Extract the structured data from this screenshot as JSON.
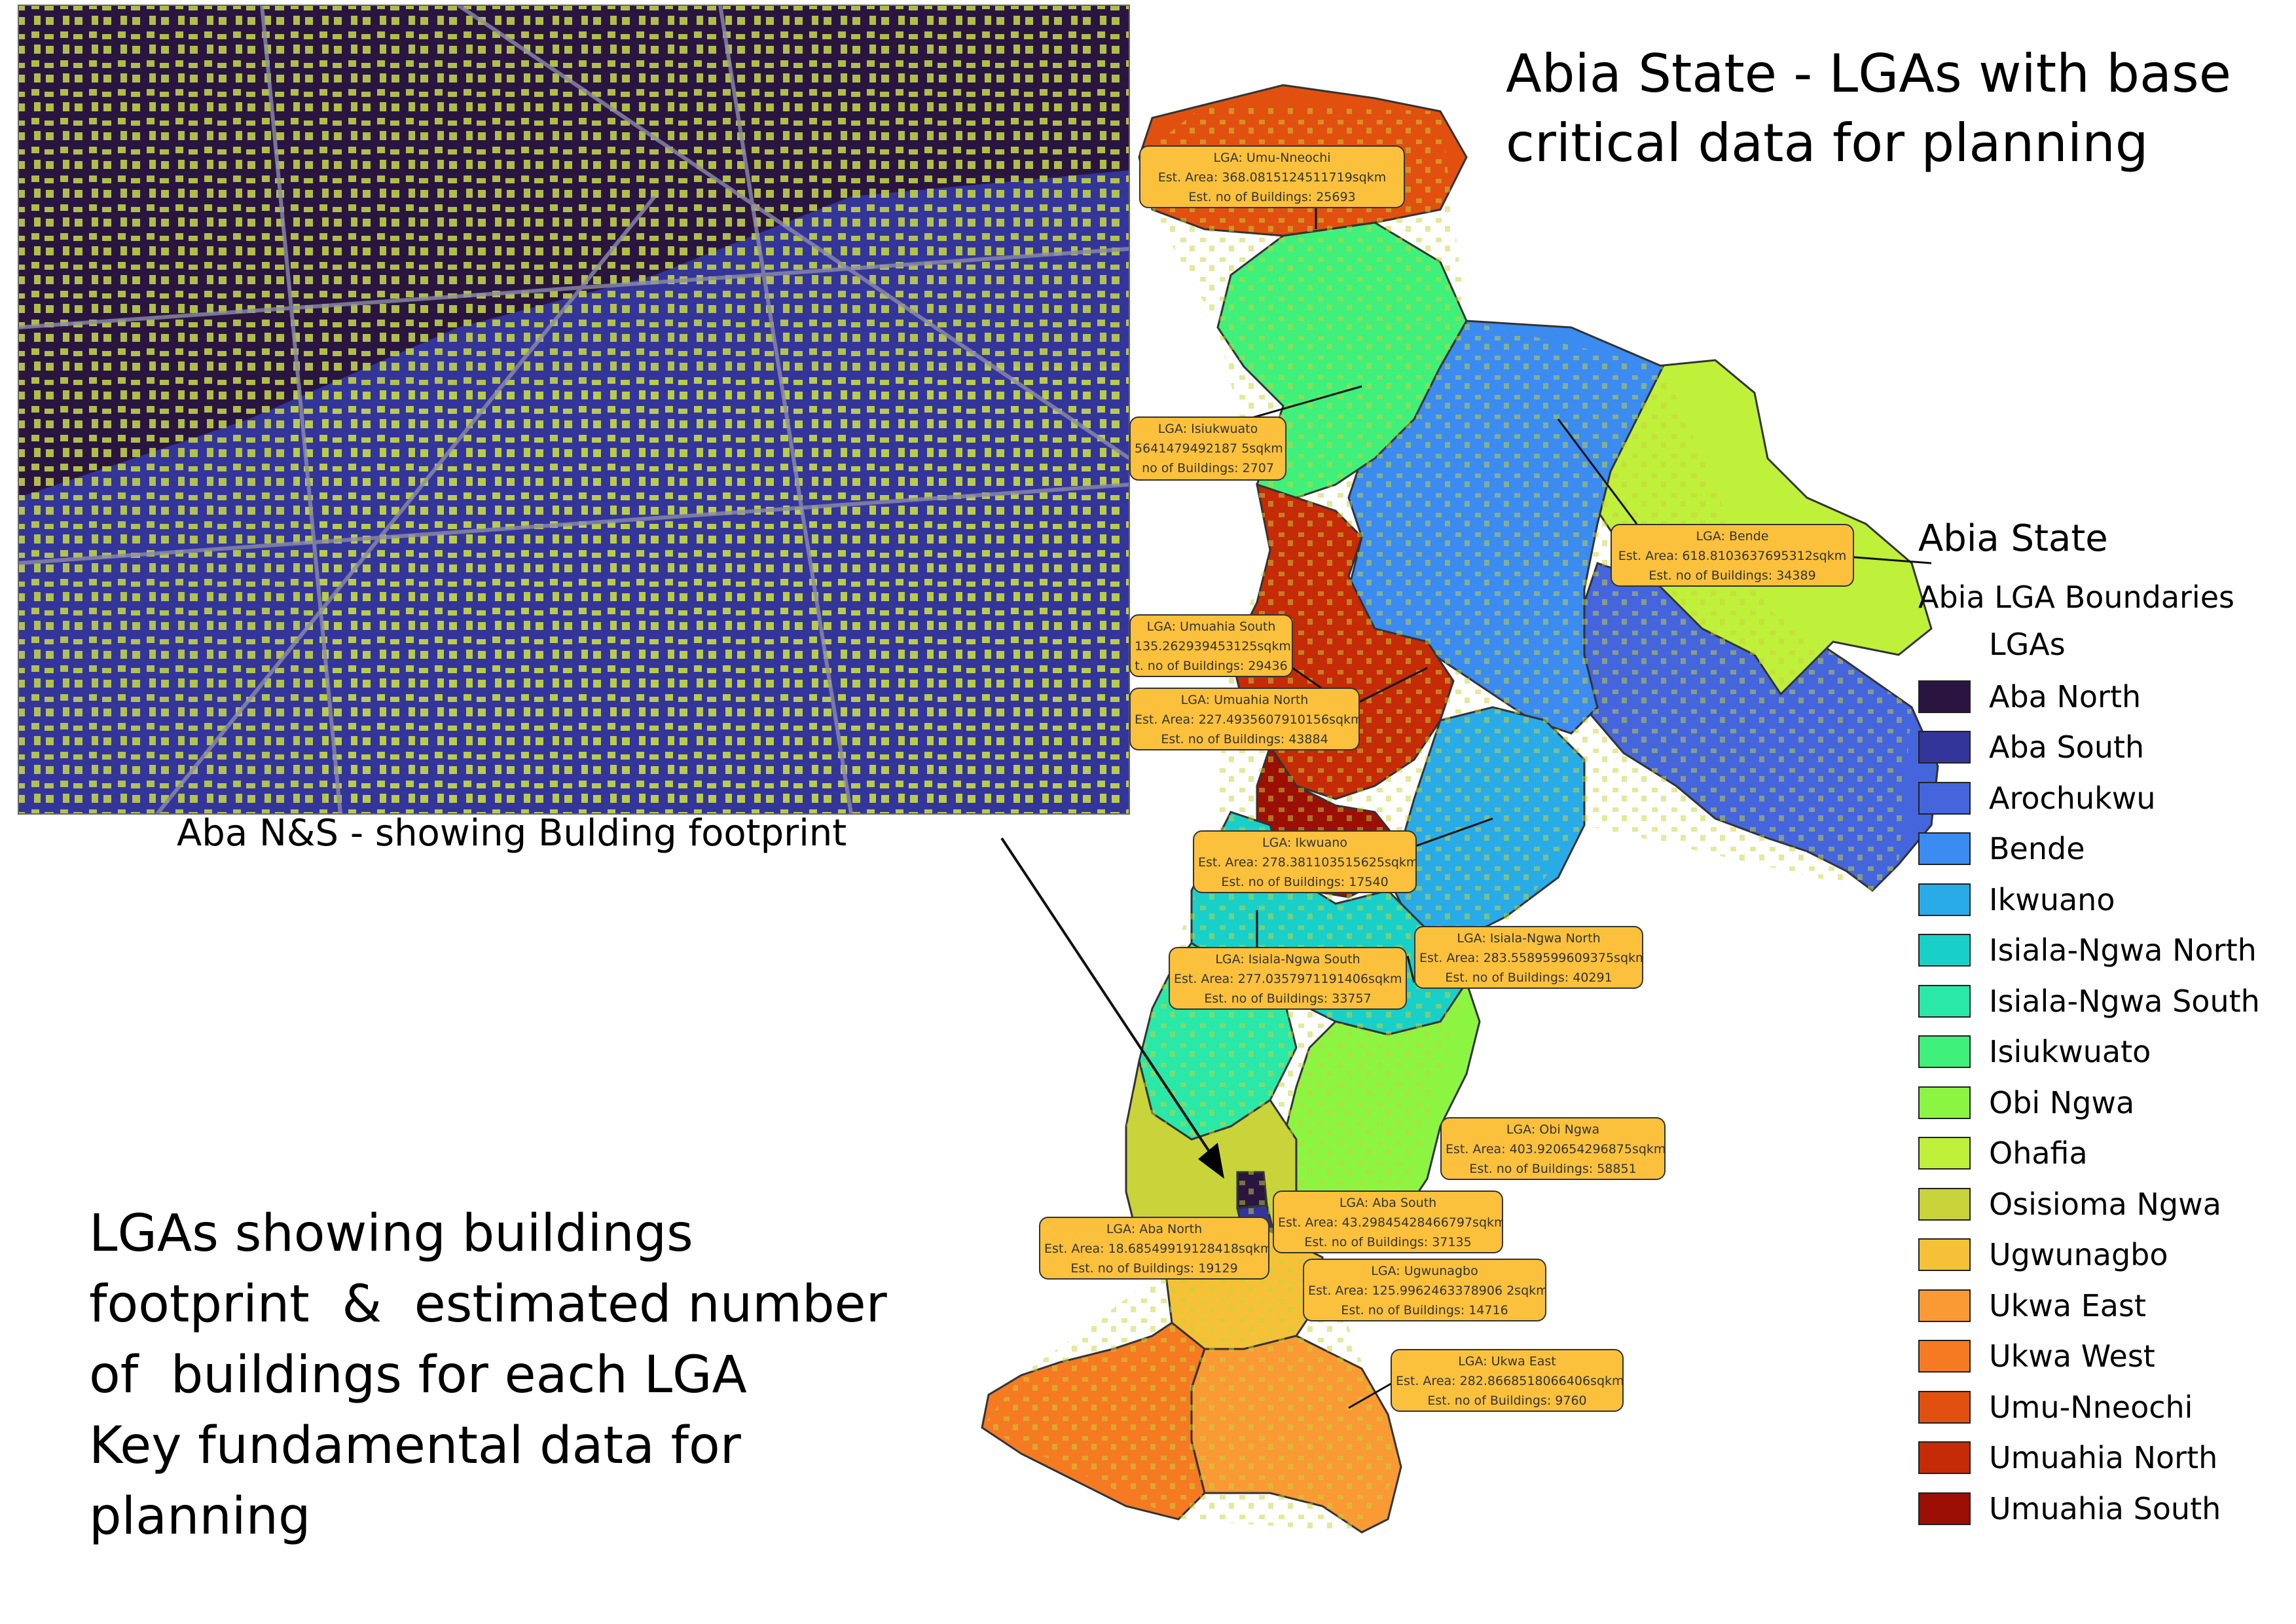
{
  "title_lines": [
    "Abia State - LGAs with base",
    "critical data for planning"
  ],
  "inset": {
    "caption": "Aba N&S - showing Bulding footprint"
  },
  "description_lines": [
    "LGAs showing buildings",
    "footprint  &  estimated number",
    "of  buildings for each LGA",
    "Key fundamental data for",
    "planning"
  ],
  "legend": {
    "title": "Abia State",
    "layer": "Abia LGA Boundaries",
    "field": "LGAs",
    "items": [
      {
        "label": "Aba North",
        "color": "#2a1540"
      },
      {
        "label": "Aba South",
        "color": "#34359a"
      },
      {
        "label": "Arochukwu",
        "color": "#4565dc"
      },
      {
        "label": "Bende",
        "color": "#3b8bf0"
      },
      {
        "label": "Ikwuano",
        "color": "#29abe8"
      },
      {
        "label": "Isiala-Ngwa North",
        "color": "#19d0c8"
      },
      {
        "label": "Isiala-Ngwa South",
        "color": "#29e8a8"
      },
      {
        "label": "Isiukwuato",
        "color": "#3ff07a"
      },
      {
        "label": "Obi Ngwa",
        "color": "#8cf542"
      },
      {
        "label": "Ohafia",
        "color": "#bff03a"
      },
      {
        "label": "Osisioma Ngwa",
        "color": "#c9d33a"
      },
      {
        "label": "Ugwunagbo",
        "color": "#f5c237"
      },
      {
        "label": "Ukwa East",
        "color": "#f99a34"
      },
      {
        "label": "Ukwa West",
        "color": "#f57a22"
      },
      {
        "label": "Umu-Nneochi",
        "color": "#e2500f"
      },
      {
        "label": "Umuahia North",
        "color": "#c42b06"
      },
      {
        "label": "Umuahia South",
        "color": "#9b0f04"
      }
    ]
  },
  "callouts": [
    {
      "lga": "LGA: Umu-Nneochi",
      "area": "Est. Area: 368.0815124511719sqkm",
      "buildings": "Est. no of Buildings: 25693"
    },
    {
      "lga": "LGA: Isiukwuato",
      "area": "5641479492187 5sqkm",
      "buildings": "no of Buildings: 2707"
    },
    {
      "lga": "LGA: Bende",
      "area": "Est. Area: 618.8103637695312sqkm",
      "buildings": "Est. no of Buildings: 34389"
    },
    {
      "lga": "LGA: Umuahia South",
      "area": "135.262939453125sqkm",
      "buildings": "t. no of Buildings: 29436"
    },
    {
      "lga": "LGA: Umuahia North",
      "area": "Est. Area: 227.4935607910156sqkm",
      "buildings": "Est. no of Buildings: 43884"
    },
    {
      "lga": "LGA: Ikwuano",
      "area": "Est. Area: 278.381103515625sqkm",
      "buildings": "Est. no of Buildings: 17540"
    },
    {
      "lga": "LGA: Isiala-Ngwa South",
      "area": "Est. Area: 277.0357971191406sqkm",
      "buildings": "Est. no of Buildings: 33757"
    },
    {
      "lga": "LGA: Isiala-Ngwa North",
      "area": "Est. Area: 283.5589599609375sqkm",
      "buildings": "Est. no of Buildings: 40291"
    },
    {
      "lga": "LGA: Obi Ngwa",
      "area": "Est. Area: 403.920654296875sqkm",
      "buildings": "Est. no of Buildings: 58851"
    },
    {
      "lga": "LGA: Aba South",
      "area": "Est. Area: 43.29845428466797sqkm",
      "buildings": "Est. no of Buildings: 37135"
    },
    {
      "lga": "LGA: Aba North",
      "area": "Est. Area: 18.68549919128418sqkm",
      "buildings": "Est. no of Buildings: 19129"
    },
    {
      "lga": "LGA: Ugwunagbo",
      "area": "Est. Area: 125.9962463378906 2sqkm",
      "buildings": "Est. no of Buildings: 14716"
    },
    {
      "lga": "LGA: Ukwa East",
      "area": "Est. Area: 282.8668518066406sqkm",
      "buildings": "Est. no of Buildings: 9760"
    }
  ]
}
